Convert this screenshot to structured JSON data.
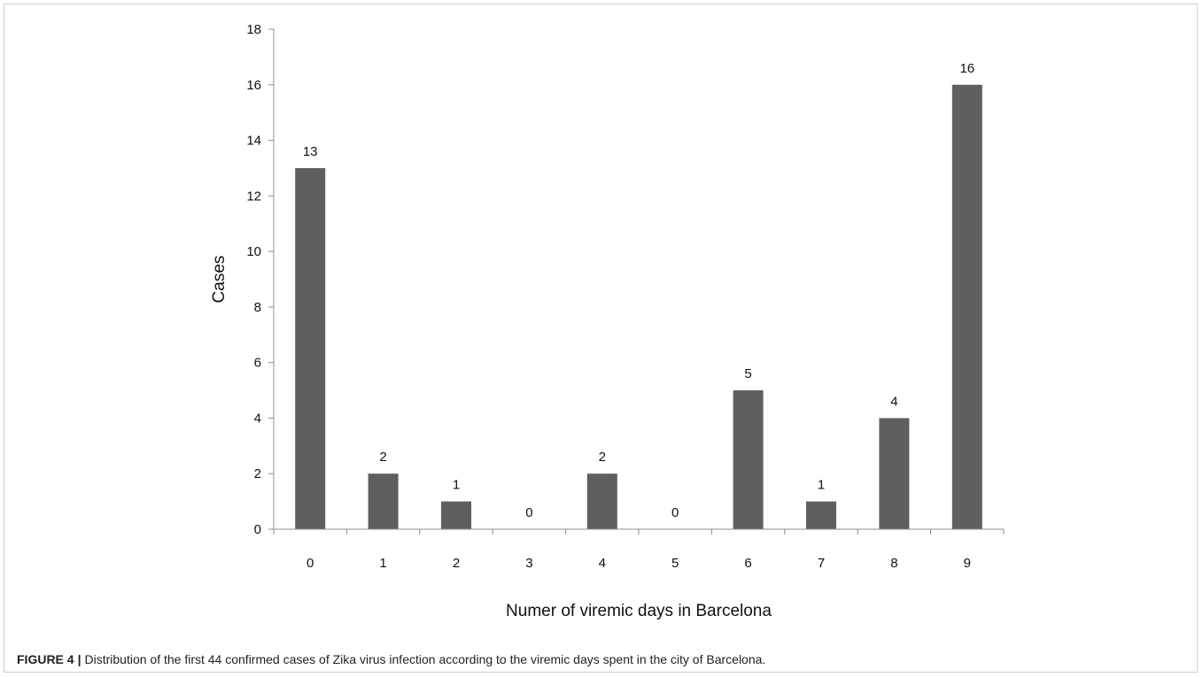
{
  "chart_data": {
    "type": "bar",
    "categories": [
      "0",
      "1",
      "2",
      "3",
      "4",
      "5",
      "6",
      "7",
      "8",
      "9"
    ],
    "values": [
      13,
      2,
      1,
      0,
      2,
      0,
      5,
      1,
      4,
      16
    ],
    "data_labels": [
      "13",
      "2",
      "1",
      "0",
      "2",
      "0",
      "5",
      "1",
      "4",
      "16"
    ],
    "title": "",
    "xlabel": "Numer of viremic days in Barcelona",
    "ylabel": "Cases",
    "ylim": [
      0,
      18
    ],
    "yticks": [
      "0",
      "2",
      "4",
      "6",
      "8",
      "10",
      "12",
      "14",
      "16",
      "18"
    ],
    "grid": false,
    "legend": "none",
    "bar_color": "#5f5f5f"
  },
  "caption": {
    "label": "FIGURE 4",
    "separator": "|",
    "text": "Distribution of the first 44 confirmed cases of Zika virus infection according to the viremic days spent in the city of Barcelona."
  }
}
